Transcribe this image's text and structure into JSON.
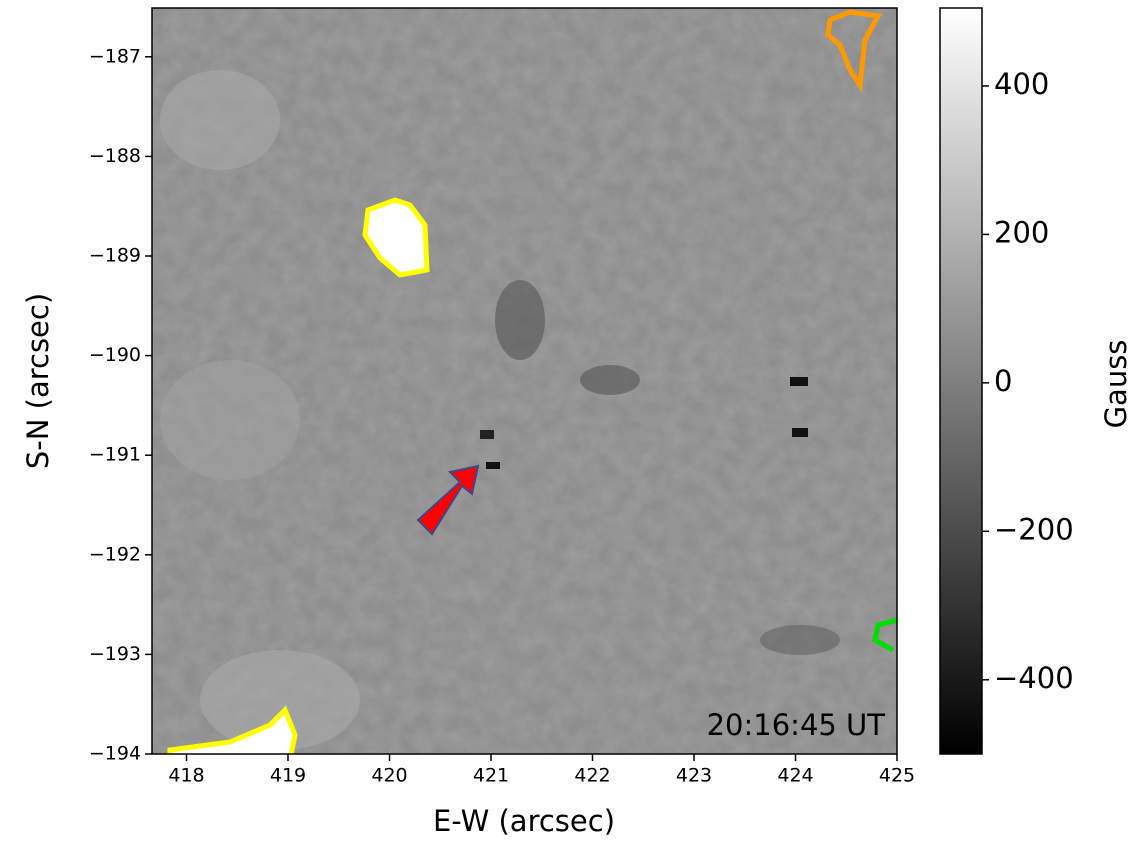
{
  "chart_data": {
    "type": "image",
    "xlabel": "E-W (arcsec)",
    "ylabel": "S-N (arcsec)",
    "annotation": "20:16:45 UT",
    "xlim": [
      417.66,
      425
    ],
    "ylim": [
      -194,
      -186.51
    ],
    "xticks": [
      418,
      419,
      420,
      421,
      422,
      423,
      424,
      425
    ],
    "yticks": [
      {
        "value": -187,
        "label": "−187"
      },
      {
        "value": -188,
        "label": "−188"
      },
      {
        "value": -189,
        "label": "−189"
      },
      {
        "value": -190,
        "label": "−190"
      },
      {
        "value": -191,
        "label": "−191"
      },
      {
        "value": -192,
        "label": "−192"
      },
      {
        "value": -193,
        "label": "−193"
      },
      {
        "value": -194,
        "label": "−194"
      }
    ],
    "colorbar": {
      "label": "Gauss",
      "clim": [
        -500,
        505
      ],
      "ticks": [
        400,
        200,
        0,
        {
          "value": -200,
          "label": "−200"
        },
        {
          "value": -400,
          "label": "−400"
        }
      ]
    }
  }
}
